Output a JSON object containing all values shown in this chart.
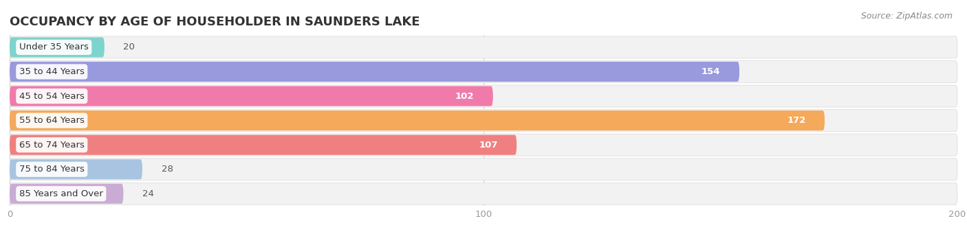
{
  "title": "OCCUPANCY BY AGE OF HOUSEHOLDER IN SAUNDERS LAKE",
  "source": "Source: ZipAtlas.com",
  "categories": [
    "Under 35 Years",
    "35 to 44 Years",
    "45 to 54 Years",
    "55 to 64 Years",
    "65 to 74 Years",
    "75 to 84 Years",
    "85 Years and Over"
  ],
  "values": [
    20,
    154,
    102,
    172,
    107,
    28,
    24
  ],
  "bar_colors": [
    "#7dd4cc",
    "#9999dd",
    "#f07baa",
    "#f5a95a",
    "#f08080",
    "#a8c4e0",
    "#c9acd4"
  ],
  "xlim": [
    0,
    200
  ],
  "xticks": [
    0,
    100,
    200
  ],
  "title_fontsize": 13,
  "label_fontsize": 9.5,
  "value_fontsize": 9.5,
  "source_fontsize": 9,
  "background_color": "#ffffff",
  "row_bg_color": "#f0f0f0",
  "row_bg_dark": "#e8e8e8"
}
